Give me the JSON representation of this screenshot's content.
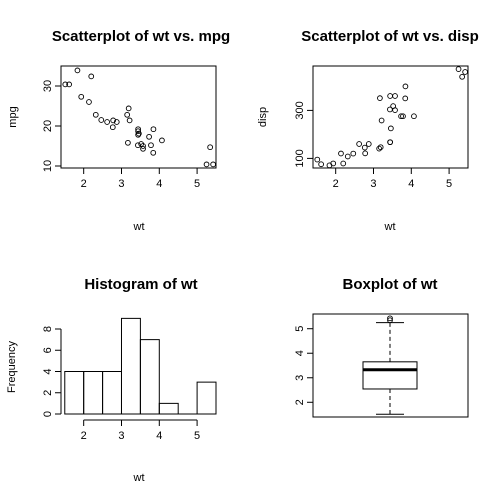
{
  "chart_data": [
    {
      "type": "scatter",
      "title": "Scatterplot of wt vs. mpg",
      "xlabel": "wt",
      "ylabel": "mpg",
      "xlim": [
        1.4,
        5.5
      ],
      "ylim": [
        9.5,
        35
      ],
      "xticks": [
        2,
        3,
        4,
        5
      ],
      "yticks": [
        10,
        20,
        30
      ],
      "x": [
        2.62,
        2.875,
        2.32,
        3.215,
        3.44,
        3.46,
        3.57,
        3.19,
        3.15,
        3.44,
        3.44,
        4.07,
        3.73,
        3.78,
        5.25,
        5.424,
        5.345,
        2.2,
        1.615,
        1.835,
        2.465,
        3.52,
        3.435,
        3.84,
        3.845,
        1.935,
        2.14,
        1.513,
        3.17,
        2.77,
        3.57,
        2.78
      ],
      "y": [
        21.0,
        21.0,
        22.8,
        21.4,
        18.7,
        18.1,
        14.3,
        24.4,
        22.8,
        19.2,
        17.8,
        16.4,
        17.3,
        15.2,
        10.4,
        10.4,
        14.7,
        32.4,
        30.4,
        33.9,
        21.5,
        15.5,
        15.2,
        13.3,
        19.2,
        27.3,
        26.0,
        30.4,
        15.8,
        19.7,
        15.0,
        21.4
      ]
    },
    {
      "type": "scatter",
      "title": "Scatterplot of wt vs. disp",
      "xlabel": "wt",
      "ylabel": "disp",
      "xlim": [
        1.4,
        5.5
      ],
      "ylim": [
        60,
        485
      ],
      "xticks": [
        2,
        3,
        4,
        5
      ],
      "yticks": [
        100,
        300
      ],
      "x": [
        2.62,
        2.875,
        2.32,
        3.215,
        3.44,
        3.46,
        3.57,
        3.19,
        3.15,
        3.44,
        3.44,
        4.07,
        3.73,
        3.78,
        5.25,
        5.424,
        5.345,
        2.2,
        1.615,
        1.835,
        2.465,
        3.52,
        3.435,
        3.84,
        3.845,
        1.935,
        2.14,
        1.513,
        3.17,
        2.77,
        3.57,
        2.78
      ],
      "y": [
        160,
        160,
        108,
        258,
        360,
        225,
        360,
        146.7,
        140.8,
        167.6,
        167.6,
        275.8,
        275.8,
        275.8,
        472,
        460,
        440,
        78.7,
        75.7,
        71.1,
        120.1,
        318,
        304,
        350,
        400,
        79,
        120.3,
        95.1,
        351,
        145,
        301,
        121
      ]
    },
    {
      "type": "bar",
      "title": "Histogram of wt",
      "xlabel": "wt",
      "ylabel": "Frequency",
      "xlim": [
        1.4,
        5.5
      ],
      "ylim": [
        0,
        9
      ],
      "xticks": [
        2,
        3,
        4,
        5
      ],
      "yticks": [
        0,
        2,
        4,
        6,
        8
      ],
      "bin_edges": [
        1.5,
        2.0,
        2.5,
        3.0,
        3.5,
        4.0,
        4.5,
        5.0,
        5.5
      ],
      "values": [
        4,
        4,
        4,
        9,
        7,
        1,
        0,
        3
      ]
    },
    {
      "type": "box",
      "title": "Boxplot of wt",
      "ylim": [
        1.4,
        5.6
      ],
      "yticks": [
        2,
        3,
        4,
        5
      ],
      "min": 1.513,
      "q1": 2.5425,
      "median": 3.325,
      "q3": 3.65,
      "max": 5.25,
      "outliers": [
        5.345,
        5.424
      ]
    }
  ]
}
